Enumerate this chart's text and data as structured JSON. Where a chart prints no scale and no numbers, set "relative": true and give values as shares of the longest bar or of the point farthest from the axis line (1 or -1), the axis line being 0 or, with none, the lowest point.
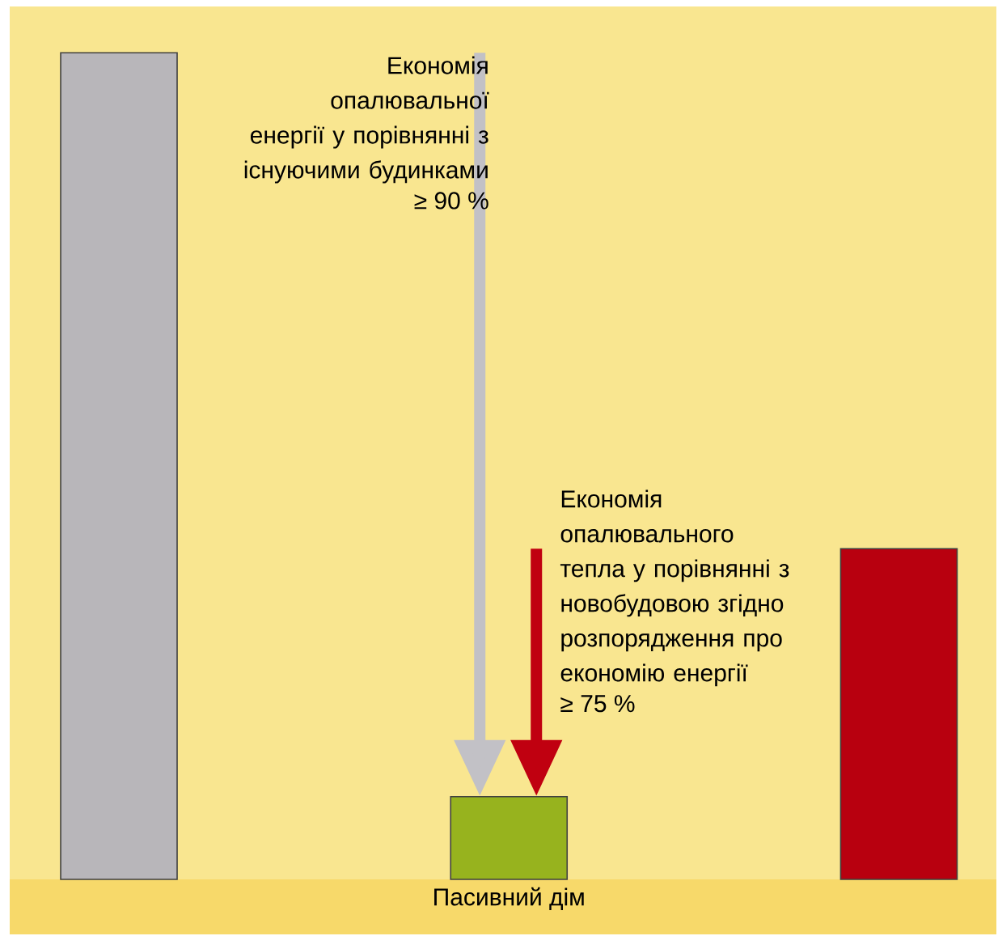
{
  "chart_data": {
    "type": "bar",
    "relative": true,
    "categories": [
      null,
      "Пасивний дім",
      null
    ],
    "values": [
      1,
      0.1,
      0.4
    ],
    "colors": [
      "#b8b6ba",
      "#97b31e",
      "#b8000f"
    ],
    "annotations": [
      "Економія опалювальної енергії у порівнянні з існуючими будинками",
      "≥ 90 %",
      "Економія опалювального тепла у порівнянні з новобудовою згідно розпорядження про економію енергії",
      "≥ 75 %"
    ]
  }
}
